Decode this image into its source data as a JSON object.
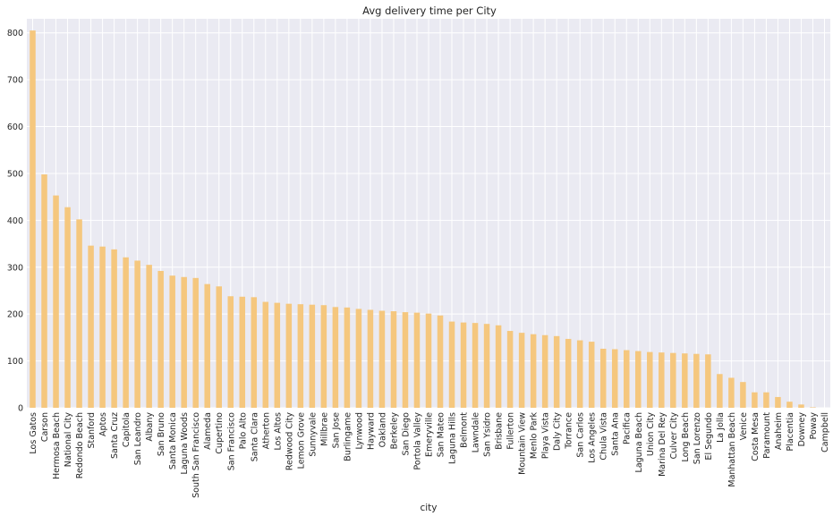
{
  "chart_data": {
    "type": "bar",
    "title": "Avg delivery time per City",
    "xlabel": "city",
    "ylabel": "",
    "ylim": [
      0,
      830
    ],
    "yticks": [
      0,
      100,
      200,
      300,
      400,
      500,
      600,
      700,
      800
    ],
    "grid": true,
    "legend": "none",
    "bar_color": "#f5c77e",
    "background_color": "#eaeaf2",
    "categories": [
      "Los Gatos",
      "Carson",
      "Hermosa Beach",
      "National City",
      "Redondo Beach",
      "Stanford",
      "Aptos",
      "Santa Cruz",
      "Capitola",
      "San Leandro",
      "Albany",
      "San Bruno",
      "Santa Monica",
      "Laguna Woods",
      "South San Francisco",
      "Alameda",
      "Cupertino",
      "San Francisco",
      "Palo Alto",
      "Santa Clara",
      "Atherton",
      "Los Altos",
      "Redwood City",
      "Lemon Grove",
      "Sunnyvale",
      "Millbrae",
      "San Jose",
      "Burlingame",
      "Lynwood",
      "Hayward",
      "Oakland",
      "Berkeley",
      "San Diego",
      "Portola Valley",
      "Emeryville",
      "San Mateo",
      "Laguna Hills",
      "Belmont",
      "Lawndale",
      "San Ysidro",
      "Brisbane",
      "Fullerton",
      "Mountain View",
      "Menlo Park",
      "Playa Vista",
      "Daly City",
      "Torrance",
      "San Carlos",
      "Los Angeles",
      "Chula Vista",
      "Santa Ana",
      "Pacifica",
      "Laguna Beach",
      "Union City",
      "Marina Del Rey",
      "Culver City",
      "Long Beach",
      "San Lorenzo",
      "El Segundo",
      "La Jolla",
      "Manhattan Beach",
      "Venice",
      "Costa Mesa",
      "Paramount",
      "Anaheim",
      "Placentia",
      "Downey",
      "Poway",
      "Campbell"
    ],
    "values": [
      805,
      498,
      453,
      428,
      402,
      346,
      344,
      338,
      321,
      314,
      305,
      292,
      282,
      279,
      277,
      264,
      259,
      238,
      237,
      236,
      226,
      224,
      222,
      221,
      220,
      219,
      215,
      214,
      211,
      209,
      207,
      206,
      204,
      203,
      201,
      197,
      184,
      182,
      181,
      179,
      176,
      164,
      160,
      157,
      155,
      153,
      147,
      144,
      141,
      126,
      125,
      123,
      121,
      119,
      118,
      117,
      116,
      115,
      114,
      72,
      64,
      55,
      33,
      33,
      23,
      13,
      7,
      1,
      0
    ]
  }
}
